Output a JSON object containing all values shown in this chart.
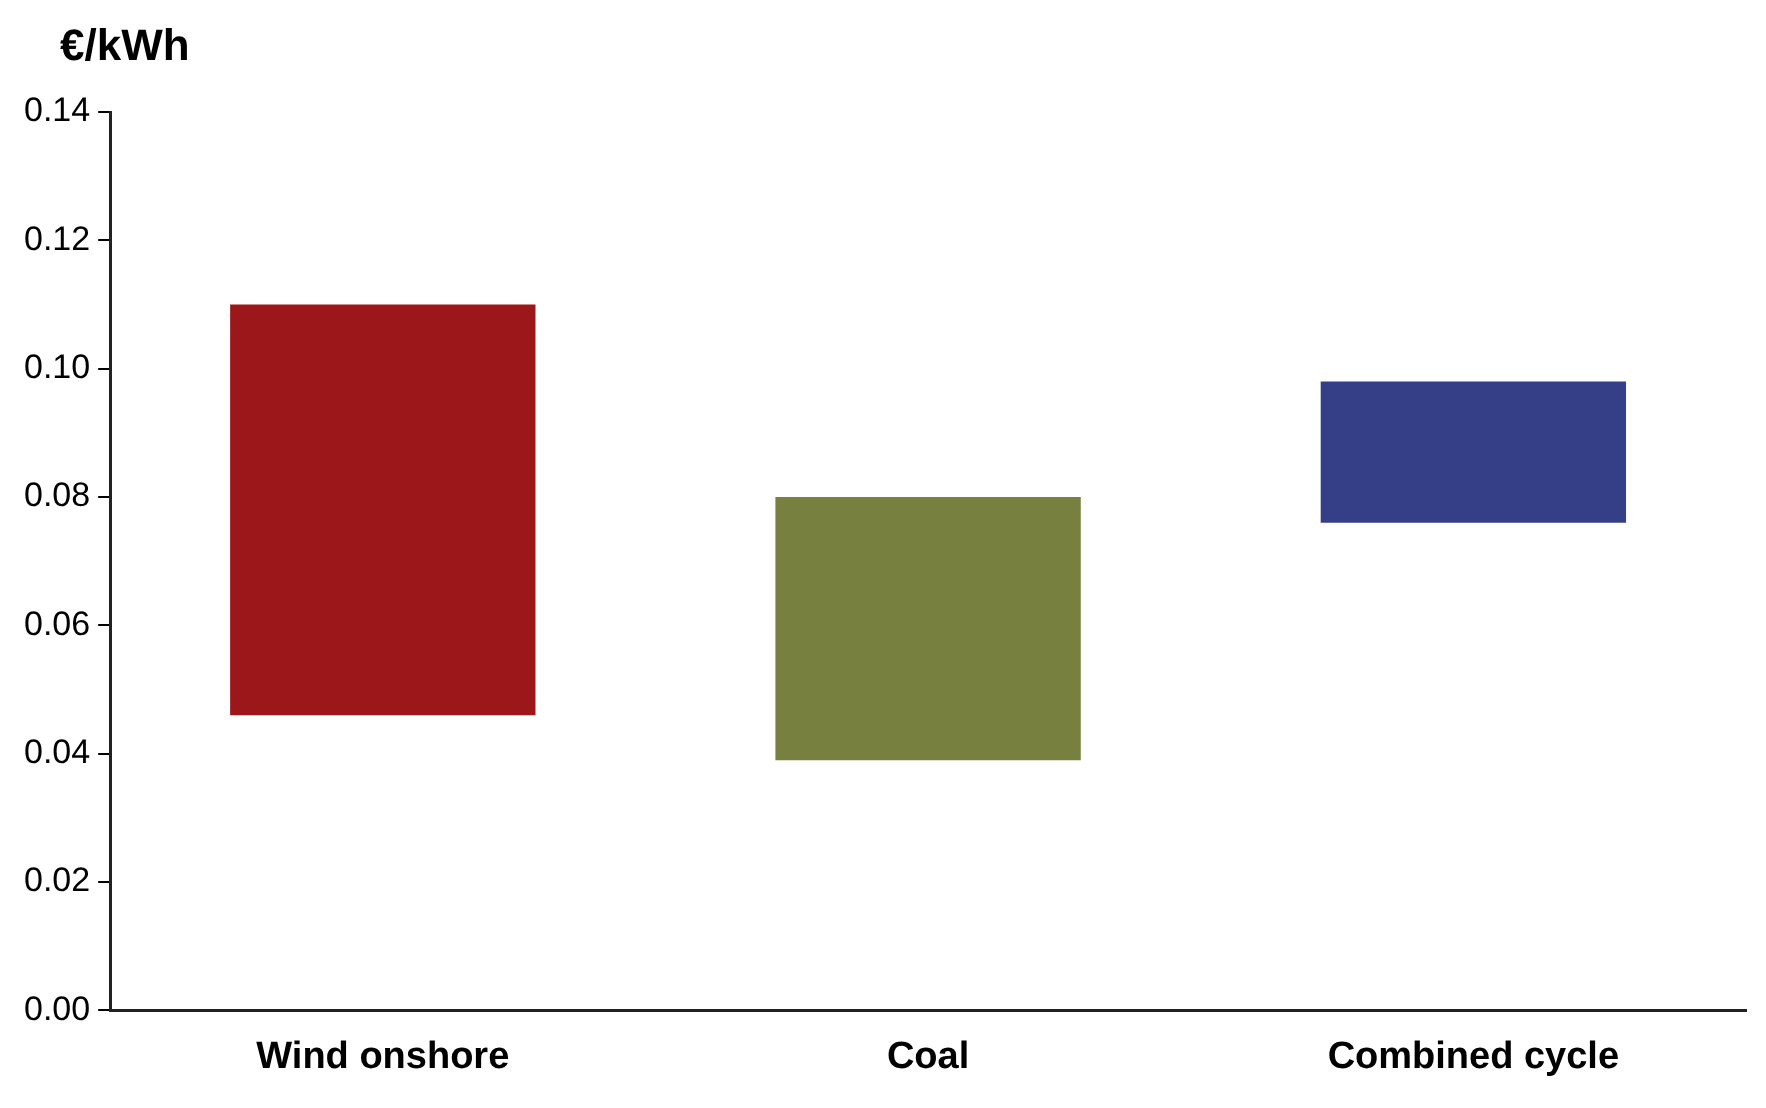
{
  "chart_data": {
    "type": "bar",
    "ylabel": "€/kWh",
    "categories": [
      "Wind onshore",
      "Coal",
      "Combined cycle"
    ],
    "base": [
      0.046,
      0.039,
      0.076
    ],
    "values": [
      0.064,
      0.041,
      0.022
    ],
    "colors": [
      "#9b1719",
      "#788040",
      "#353f88"
    ],
    "ylim": [
      0,
      0.14
    ],
    "yticks": [
      {
        "value": 0,
        "label": "0.00"
      },
      {
        "value": 0.02,
        "label": "0.02"
      },
      {
        "value": 0.04,
        "label": "0.04"
      },
      {
        "value": 0.06,
        "label": "0.06"
      },
      {
        "value": 0.08,
        "label": "0.08"
      },
      {
        "value": 0.1,
        "label": "0.10"
      },
      {
        "value": 0.12,
        "label": "0.12"
      },
      {
        "value": 0.14,
        "label": "0.14"
      }
    ],
    "grid": false,
    "legend": false
  }
}
